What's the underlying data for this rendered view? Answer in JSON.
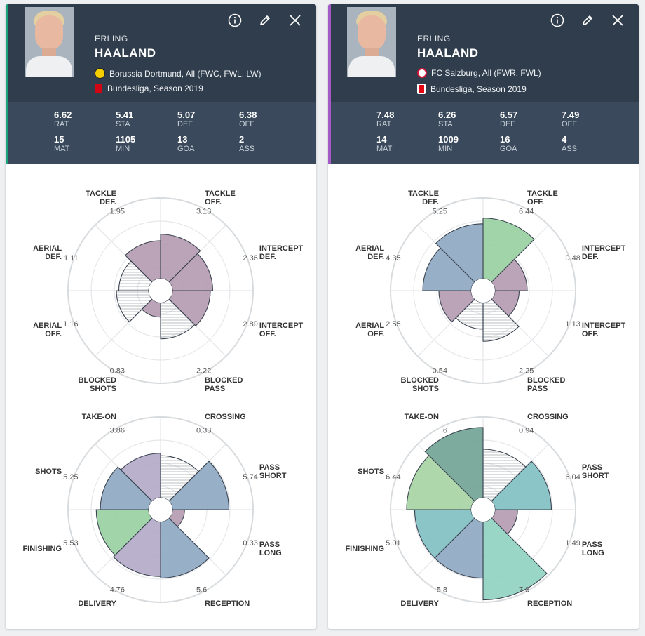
{
  "players": [
    {
      "first_name": "ERLING",
      "last_name": "HAALAND",
      "club_line": "Borussia Dortmund, All (FWC, FWL, LW)",
      "league_line": "Bundesliga, Season 2019",
      "club_badge": "dortmund-badge",
      "league_badge": "bundesliga-logo",
      "accent": "#1aa179",
      "stats": [
        {
          "value": "6.62",
          "label": "RAT"
        },
        {
          "value": "5.41",
          "label": "STA"
        },
        {
          "value": "5.07",
          "label": "DEF"
        },
        {
          "value": "6.38",
          "label": "OFF"
        },
        {
          "value": "15",
          "label": "MAT"
        },
        {
          "value": "1105",
          "label": "MIN"
        },
        {
          "value": "13",
          "label": "GOA"
        },
        {
          "value": "2",
          "label": "ASS"
        }
      ],
      "defense_values": [
        "3.13",
        "2.36",
        "2.89",
        "2.22",
        "0.83",
        "1.16",
        "1.11",
        "1.95"
      ],
      "defense_levels": [
        0.55,
        0.5,
        0.47,
        0.45,
        0.18,
        0.4,
        0.37,
        0.47
      ],
      "defense_colors": [
        "pink",
        "pink",
        "pink",
        "hatch",
        "pink",
        "hatch",
        "hatch",
        "pink"
      ],
      "attack_values": [
        "0.33",
        "5.74",
        "0.33",
        "5.6",
        "4.76",
        "5.53",
        "5.25",
        "3.86"
      ],
      "attack_levels": [
        0.52,
        0.7,
        0.15,
        0.7,
        0.68,
        0.65,
        0.6,
        0.55
      ],
      "attack_colors": [
        "hatch",
        "blue",
        "pink",
        "blue",
        "purple",
        "green",
        "blue",
        "purple"
      ]
    },
    {
      "first_name": "ERLING",
      "last_name": "HAALAND",
      "club_line": "FC Salzburg, All (FWR, FWL)",
      "league_line": "Bundesliga, Season 2019",
      "club_badge": "salzburg-badge",
      "league_badge": "austrian-bundesliga-logo",
      "accent": "#a55bc5",
      "stats": [
        {
          "value": "7.48",
          "label": "RAT"
        },
        {
          "value": "6.26",
          "label": "STA"
        },
        {
          "value": "6.57",
          "label": "DEF"
        },
        {
          "value": "7.49",
          "label": "OFF"
        },
        {
          "value": "14",
          "label": "MAT"
        },
        {
          "value": "1009",
          "label": "MIN"
        },
        {
          "value": "16",
          "label": "GOA"
        },
        {
          "value": "4",
          "label": "ASS"
        }
      ],
      "defense_values": [
        "6.44",
        "0.48",
        "1.13",
        "2.25",
        "0.54",
        "2.55",
        "4.35",
        "5.25"
      ],
      "defense_levels": [
        0.75,
        0.4,
        0.3,
        0.48,
        0.33,
        0.4,
        0.6,
        0.68
      ],
      "defense_colors": [
        "green",
        "pink",
        "pink",
        "hatch",
        "hatch",
        "pink",
        "blue",
        "blue"
      ],
      "attack_values": [
        "0.94",
        "6.04",
        "1.49",
        "7.3",
        "5.8",
        "5.01",
        "6.44",
        "6"
      ],
      "attack_levels": [
        0.6,
        0.7,
        0.28,
        0.97,
        0.7,
        0.7,
        0.8,
        0.87
      ],
      "attack_colors": [
        "hatch",
        "teal",
        "pink",
        "mint",
        "blue",
        "teal",
        "lgreen",
        "dgreen"
      ]
    }
  ],
  "defense_labels": [
    [
      "TACKLE",
      "OFF."
    ],
    [
      "INTERCEPT",
      "DEF."
    ],
    [
      "INTERCEPT",
      "OFF."
    ],
    [
      "BLOCKED",
      "PASS"
    ],
    [
      "BLOCKED",
      "SHOTS"
    ],
    [
      "AERIAL",
      "OFF."
    ],
    [
      "AERIAL",
      "DEF."
    ],
    [
      "TACKLE",
      "DEF."
    ]
  ],
  "attack_labels": [
    [
      "CROSSING"
    ],
    [
      "PASS",
      "SHORT"
    ],
    [
      "PASS",
      "LONG"
    ],
    [
      "RECEPTION"
    ],
    [
      "DELIVERY"
    ],
    [
      "FINISHING"
    ],
    [
      "SHOTS"
    ],
    [
      "TAKE-ON"
    ]
  ],
  "colors": {
    "pink": "#b49ab0",
    "blue": "#8da7c1",
    "purple": "#b2a9c6",
    "green": "#97cf9e",
    "hatch": "#ffffff",
    "teal": "#7fbfc1",
    "mint": "#8ed2bf",
    "lgreen": "#a5d4a3",
    "dgreen": "#6fa292"
  }
}
